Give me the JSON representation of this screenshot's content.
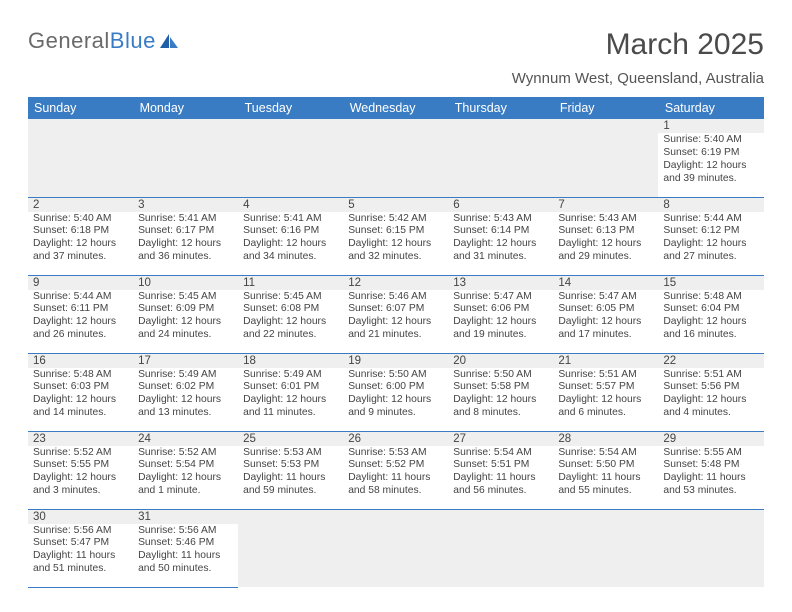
{
  "logo": {
    "part1": "General",
    "part2": "Blue"
  },
  "title": "March 2025",
  "location": "Wynnum West, Queensland, Australia",
  "colors": {
    "header_bg": "#3a7cc4",
    "header_fg": "#ffffff",
    "row_border": "#3a7cc4",
    "daynum_bg": "#efefef",
    "text": "#444444",
    "page_bg": "#ffffff"
  },
  "dayHeaders": [
    "Sunday",
    "Monday",
    "Tuesday",
    "Wednesday",
    "Thursday",
    "Friday",
    "Saturday"
  ],
  "weeks": [
    [
      null,
      null,
      null,
      null,
      null,
      null,
      {
        "n": "1",
        "sr": "Sunrise: 5:40 AM",
        "ss": "Sunset: 6:19 PM",
        "dl": "Daylight: 12 hours and 39 minutes."
      }
    ],
    [
      {
        "n": "2",
        "sr": "Sunrise: 5:40 AM",
        "ss": "Sunset: 6:18 PM",
        "dl": "Daylight: 12 hours and 37 minutes."
      },
      {
        "n": "3",
        "sr": "Sunrise: 5:41 AM",
        "ss": "Sunset: 6:17 PM",
        "dl": "Daylight: 12 hours and 36 minutes."
      },
      {
        "n": "4",
        "sr": "Sunrise: 5:41 AM",
        "ss": "Sunset: 6:16 PM",
        "dl": "Daylight: 12 hours and 34 minutes."
      },
      {
        "n": "5",
        "sr": "Sunrise: 5:42 AM",
        "ss": "Sunset: 6:15 PM",
        "dl": "Daylight: 12 hours and 32 minutes."
      },
      {
        "n": "6",
        "sr": "Sunrise: 5:43 AM",
        "ss": "Sunset: 6:14 PM",
        "dl": "Daylight: 12 hours and 31 minutes."
      },
      {
        "n": "7",
        "sr": "Sunrise: 5:43 AM",
        "ss": "Sunset: 6:13 PM",
        "dl": "Daylight: 12 hours and 29 minutes."
      },
      {
        "n": "8",
        "sr": "Sunrise: 5:44 AM",
        "ss": "Sunset: 6:12 PM",
        "dl": "Daylight: 12 hours and 27 minutes."
      }
    ],
    [
      {
        "n": "9",
        "sr": "Sunrise: 5:44 AM",
        "ss": "Sunset: 6:11 PM",
        "dl": "Daylight: 12 hours and 26 minutes."
      },
      {
        "n": "10",
        "sr": "Sunrise: 5:45 AM",
        "ss": "Sunset: 6:09 PM",
        "dl": "Daylight: 12 hours and 24 minutes."
      },
      {
        "n": "11",
        "sr": "Sunrise: 5:45 AM",
        "ss": "Sunset: 6:08 PM",
        "dl": "Daylight: 12 hours and 22 minutes."
      },
      {
        "n": "12",
        "sr": "Sunrise: 5:46 AM",
        "ss": "Sunset: 6:07 PM",
        "dl": "Daylight: 12 hours and 21 minutes."
      },
      {
        "n": "13",
        "sr": "Sunrise: 5:47 AM",
        "ss": "Sunset: 6:06 PM",
        "dl": "Daylight: 12 hours and 19 minutes."
      },
      {
        "n": "14",
        "sr": "Sunrise: 5:47 AM",
        "ss": "Sunset: 6:05 PM",
        "dl": "Daylight: 12 hours and 17 minutes."
      },
      {
        "n": "15",
        "sr": "Sunrise: 5:48 AM",
        "ss": "Sunset: 6:04 PM",
        "dl": "Daylight: 12 hours and 16 minutes."
      }
    ],
    [
      {
        "n": "16",
        "sr": "Sunrise: 5:48 AM",
        "ss": "Sunset: 6:03 PM",
        "dl": "Daylight: 12 hours and 14 minutes."
      },
      {
        "n": "17",
        "sr": "Sunrise: 5:49 AM",
        "ss": "Sunset: 6:02 PM",
        "dl": "Daylight: 12 hours and 13 minutes."
      },
      {
        "n": "18",
        "sr": "Sunrise: 5:49 AM",
        "ss": "Sunset: 6:01 PM",
        "dl": "Daylight: 12 hours and 11 minutes."
      },
      {
        "n": "19",
        "sr": "Sunrise: 5:50 AM",
        "ss": "Sunset: 6:00 PM",
        "dl": "Daylight: 12 hours and 9 minutes."
      },
      {
        "n": "20",
        "sr": "Sunrise: 5:50 AM",
        "ss": "Sunset: 5:58 PM",
        "dl": "Daylight: 12 hours and 8 minutes."
      },
      {
        "n": "21",
        "sr": "Sunrise: 5:51 AM",
        "ss": "Sunset: 5:57 PM",
        "dl": "Daylight: 12 hours and 6 minutes."
      },
      {
        "n": "22",
        "sr": "Sunrise: 5:51 AM",
        "ss": "Sunset: 5:56 PM",
        "dl": "Daylight: 12 hours and 4 minutes."
      }
    ],
    [
      {
        "n": "23",
        "sr": "Sunrise: 5:52 AM",
        "ss": "Sunset: 5:55 PM",
        "dl": "Daylight: 12 hours and 3 minutes."
      },
      {
        "n": "24",
        "sr": "Sunrise: 5:52 AM",
        "ss": "Sunset: 5:54 PM",
        "dl": "Daylight: 12 hours and 1 minute."
      },
      {
        "n": "25",
        "sr": "Sunrise: 5:53 AM",
        "ss": "Sunset: 5:53 PM",
        "dl": "Daylight: 11 hours and 59 minutes."
      },
      {
        "n": "26",
        "sr": "Sunrise: 5:53 AM",
        "ss": "Sunset: 5:52 PM",
        "dl": "Daylight: 11 hours and 58 minutes."
      },
      {
        "n": "27",
        "sr": "Sunrise: 5:54 AM",
        "ss": "Sunset: 5:51 PM",
        "dl": "Daylight: 11 hours and 56 minutes."
      },
      {
        "n": "28",
        "sr": "Sunrise: 5:54 AM",
        "ss": "Sunset: 5:50 PM",
        "dl": "Daylight: 11 hours and 55 minutes."
      },
      {
        "n": "29",
        "sr": "Sunrise: 5:55 AM",
        "ss": "Sunset: 5:48 PM",
        "dl": "Daylight: 11 hours and 53 minutes."
      }
    ],
    [
      {
        "n": "30",
        "sr": "Sunrise: 5:56 AM",
        "ss": "Sunset: 5:47 PM",
        "dl": "Daylight: 11 hours and 51 minutes."
      },
      {
        "n": "31",
        "sr": "Sunrise: 5:56 AM",
        "ss": "Sunset: 5:46 PM",
        "dl": "Daylight: 11 hours and 50 minutes."
      },
      null,
      null,
      null,
      null,
      null
    ]
  ]
}
